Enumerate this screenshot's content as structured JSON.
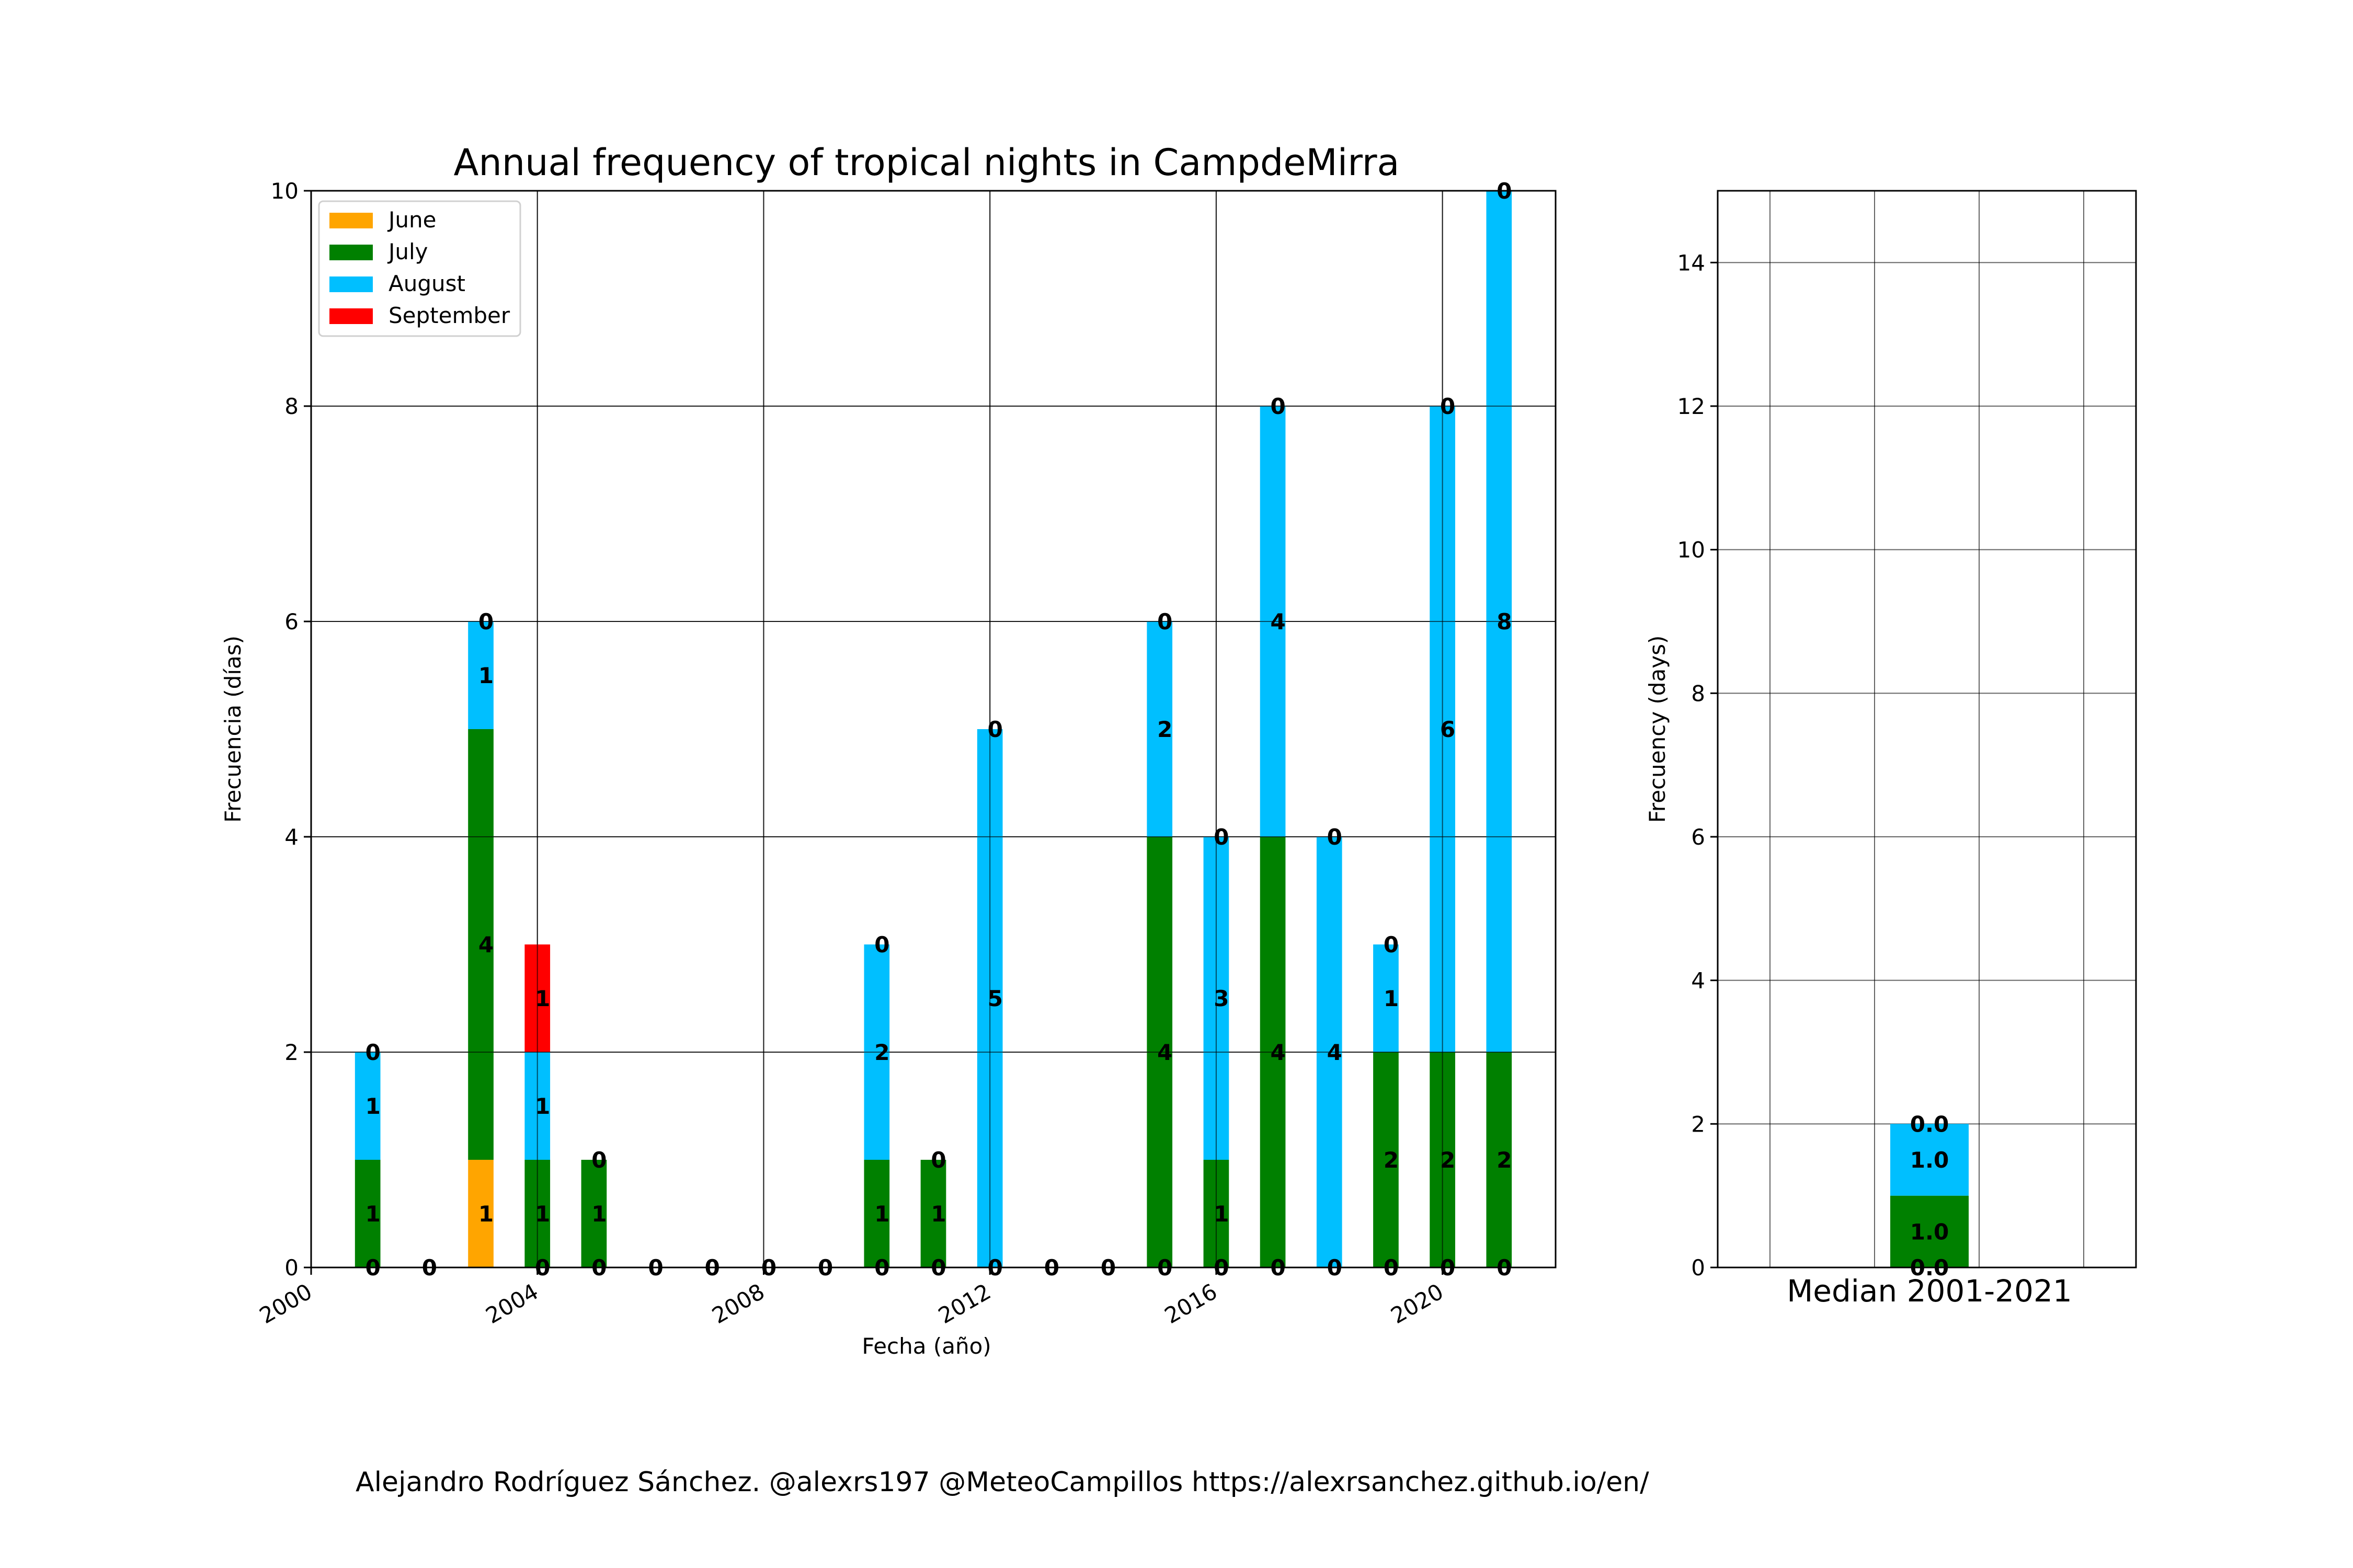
{
  "chart_data": [
    {
      "type": "bar",
      "stacked": true,
      "title": "Annual frequency of tropical nights in CampdeMirra",
      "xlabel": "Fecha (año)",
      "ylabel": "Frecuencia (días)",
      "xlim": [
        2000,
        2022
      ],
      "ylim": [
        0,
        10
      ],
      "xticks": [
        "2000",
        "2004",
        "2008",
        "2012",
        "2016",
        "2020"
      ],
      "yticks": [
        "0",
        "2",
        "4",
        "6",
        "8",
        "10"
      ],
      "grid": true,
      "legend_position": "upper-left",
      "years": [
        2001,
        2002,
        2003,
        2004,
        2005,
        2006,
        2007,
        2008,
        2009,
        2010,
        2011,
        2012,
        2013,
        2014,
        2015,
        2016,
        2017,
        2018,
        2019,
        2020,
        2021
      ],
      "series": [
        {
          "name": "June",
          "color": "#ffa500",
          "values": [
            0,
            0,
            1,
            0,
            0,
            0,
            0,
            0,
            0,
            0,
            0,
            0,
            0,
            0,
            0,
            0,
            0,
            0,
            0,
            0,
            0
          ]
        },
        {
          "name": "July",
          "color": "#008000",
          "values": [
            1,
            0,
            4,
            1,
            1,
            0,
            0,
            0,
            0,
            1,
            1,
            0,
            0,
            0,
            4,
            1,
            4,
            0,
            2,
            2,
            2
          ]
        },
        {
          "name": "August",
          "color": "#00bfff",
          "values": [
            1,
            0,
            1,
            1,
            0,
            0,
            0,
            0,
            0,
            2,
            0,
            5,
            0,
            0,
            2,
            3,
            4,
            4,
            1,
            6,
            8
          ]
        },
        {
          "name": "September",
          "color": "#ff0000",
          "values": [
            0,
            0,
            0,
            1,
            0,
            0,
            0,
            0,
            0,
            0,
            0,
            0,
            0,
            0,
            0,
            0,
            0,
            0,
            0,
            0,
            0
          ]
        }
      ],
      "bar_labels": [
        {
          "x": 2001,
          "y": 0,
          "text": "0"
        },
        {
          "x": 2001,
          "y": 0.5,
          "text": "1"
        },
        {
          "x": 2001,
          "y": 1.5,
          "text": "1"
        },
        {
          "x": 2001,
          "y": 2,
          "text": "0"
        },
        {
          "x": 2002,
          "y": 0,
          "text": "0"
        },
        {
          "x": 2003,
          "y": 0.5,
          "text": "1"
        },
        {
          "x": 2003,
          "y": 3,
          "text": "4"
        },
        {
          "x": 2003,
          "y": 5.5,
          "text": "1"
        },
        {
          "x": 2003,
          "y": 6,
          "text": "0"
        },
        {
          "x": 2004,
          "y": 0,
          "text": "0"
        },
        {
          "x": 2004,
          "y": 0.5,
          "text": "1"
        },
        {
          "x": 2004,
          "y": 1.5,
          "text": "1"
        },
        {
          "x": 2004,
          "y": 2.5,
          "text": "1"
        },
        {
          "x": 2005,
          "y": 0,
          "text": "0"
        },
        {
          "x": 2005,
          "y": 0.5,
          "text": "1"
        },
        {
          "x": 2005,
          "y": 1,
          "text": "0"
        },
        {
          "x": 2006,
          "y": 0,
          "text": "0"
        },
        {
          "x": 2007,
          "y": 0,
          "text": "0"
        },
        {
          "x": 2008,
          "y": 0,
          "text": "0"
        },
        {
          "x": 2009,
          "y": 0,
          "text": "0"
        },
        {
          "x": 2010,
          "y": 0,
          "text": "0"
        },
        {
          "x": 2010,
          "y": 0.5,
          "text": "1"
        },
        {
          "x": 2010,
          "y": 2,
          "text": "2"
        },
        {
          "x": 2010,
          "y": 3,
          "text": "0"
        },
        {
          "x": 2011,
          "y": 0,
          "text": "0"
        },
        {
          "x": 2011,
          "y": 0.5,
          "text": "1"
        },
        {
          "x": 2011,
          "y": 1,
          "text": "0"
        },
        {
          "x": 2012,
          "y": 0,
          "text": "0"
        },
        {
          "x": 2012,
          "y": 2.5,
          "text": "5"
        },
        {
          "x": 2012,
          "y": 5,
          "text": "0"
        },
        {
          "x": 2013,
          "y": 0,
          "text": "0"
        },
        {
          "x": 2014,
          "y": 0,
          "text": "0"
        },
        {
          "x": 2015,
          "y": 0,
          "text": "0"
        },
        {
          "x": 2015,
          "y": 2,
          "text": "4"
        },
        {
          "x": 2015,
          "y": 5,
          "text": "2"
        },
        {
          "x": 2015,
          "y": 6,
          "text": "0"
        },
        {
          "x": 2016,
          "y": 0,
          "text": "0"
        },
        {
          "x": 2016,
          "y": 0.5,
          "text": "1"
        },
        {
          "x": 2016,
          "y": 2.5,
          "text": "3"
        },
        {
          "x": 2016,
          "y": 4,
          "text": "0"
        },
        {
          "x": 2017,
          "y": 0,
          "text": "0"
        },
        {
          "x": 2017,
          "y": 2,
          "text": "4"
        },
        {
          "x": 2017,
          "y": 6,
          "text": "4"
        },
        {
          "x": 2017,
          "y": 8,
          "text": "0"
        },
        {
          "x": 2018,
          "y": 0,
          "text": "0"
        },
        {
          "x": 2018,
          "y": 2,
          "text": "4"
        },
        {
          "x": 2018,
          "y": 4,
          "text": "0"
        },
        {
          "x": 2019,
          "y": 0,
          "text": "0"
        },
        {
          "x": 2019,
          "y": 1,
          "text": "2"
        },
        {
          "x": 2019,
          "y": 2.5,
          "text": "1"
        },
        {
          "x": 2019,
          "y": 3,
          "text": "0"
        },
        {
          "x": 2020,
          "y": 0,
          "text": "0"
        },
        {
          "x": 2020,
          "y": 1,
          "text": "2"
        },
        {
          "x": 2020,
          "y": 5,
          "text": "6"
        },
        {
          "x": 2020,
          "y": 8,
          "text": "0"
        },
        {
          "x": 2021,
          "y": 0,
          "text": "0"
        },
        {
          "x": 2021,
          "y": 1,
          "text": "2"
        },
        {
          "x": 2021,
          "y": 6,
          "text": "8"
        },
        {
          "x": 2021,
          "y": 10,
          "text": "0"
        }
      ]
    },
    {
      "type": "bar",
      "stacked": true,
      "title": "",
      "xlabel": "Median 2001-2021",
      "ylabel": "Frecuency (days)",
      "ylim": [
        0,
        15
      ],
      "yticks": [
        "0",
        "2",
        "4",
        "6",
        "8",
        "10",
        "12",
        "14"
      ],
      "grid": true,
      "categories": [
        "Median 2001-2021"
      ],
      "series": [
        {
          "name": "June",
          "color": "#ffa500",
          "values": [
            0.0
          ]
        },
        {
          "name": "July",
          "color": "#008000",
          "values": [
            1.0
          ]
        },
        {
          "name": "August",
          "color": "#00bfff",
          "values": [
            1.0
          ]
        },
        {
          "name": "September",
          "color": "#ff0000",
          "values": [
            0.0
          ]
        }
      ],
      "bar_labels": [
        {
          "y": 0,
          "text": "0.0"
        },
        {
          "y": 0.5,
          "text": "1.0"
        },
        {
          "y": 1.5,
          "text": "1.0"
        },
        {
          "y": 2,
          "text": "0.0"
        }
      ]
    }
  ],
  "footer": {
    "credit": "Alejandro Rodríguez Sánchez. @alexrs197 @MeteoCampillos   https://alexrsanchez.github.io/en/"
  }
}
